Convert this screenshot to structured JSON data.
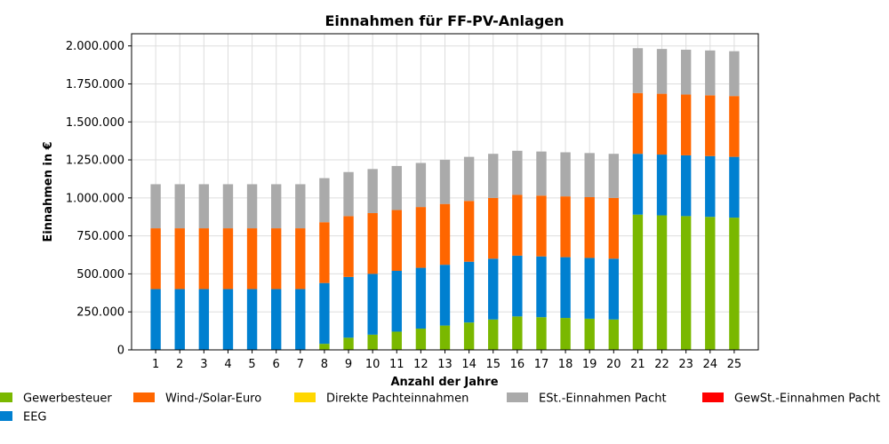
{
  "chart_data": {
    "type": "bar",
    "stacked": true,
    "title": "Einnahmen für FF-PV-Anlagen",
    "xlabel": "Anzahl der Jahre",
    "ylabel": "Einnahmen in €",
    "ylim": [
      0,
      2080000
    ],
    "yticks": [
      0,
      250000,
      500000,
      750000,
      1000000,
      1250000,
      1500000,
      1750000,
      2000000
    ],
    "ytick_labels": [
      "0",
      "250.000",
      "500.000",
      "750.000",
      "1.000.000",
      "1.250.000",
      "1.500.000",
      "1.750.000",
      "2.000.000"
    ],
    "grid": true,
    "legend_position": "bottom",
    "categories": [
      "1",
      "2",
      "3",
      "4",
      "5",
      "6",
      "7",
      "8",
      "9",
      "10",
      "11",
      "12",
      "13",
      "14",
      "15",
      "16",
      "17",
      "18",
      "19",
      "20",
      "21",
      "22",
      "23",
      "24",
      "25"
    ],
    "series": [
      {
        "name": "Gewerbesteuer",
        "color": "#7ab800",
        "values": [
          0,
          0,
          0,
          0,
          0,
          0,
          0,
          40000,
          80000,
          100000,
          120000,
          140000,
          160000,
          180000,
          200000,
          220000,
          215000,
          210000,
          205000,
          200000,
          890000,
          885000,
          880000,
          875000,
          870000
        ]
      },
      {
        "name": "EEG",
        "color": "#0080d0",
        "values": [
          400000,
          400000,
          400000,
          400000,
          400000,
          400000,
          400000,
          400000,
          400000,
          400000,
          400000,
          400000,
          400000,
          400000,
          400000,
          400000,
          400000,
          400000,
          400000,
          400000,
          400000,
          400000,
          400000,
          400000,
          400000
        ]
      },
      {
        "name": "Wind-/Solar-Euro",
        "color": "#ff6600",
        "values": [
          400000,
          400000,
          400000,
          400000,
          400000,
          400000,
          400000,
          400000,
          400000,
          400000,
          400000,
          400000,
          400000,
          400000,
          400000,
          400000,
          400000,
          400000,
          400000,
          400000,
          400000,
          400000,
          400000,
          400000,
          400000
        ]
      },
      {
        "name": "Direkte Pachteinnahmen",
        "color": "#ffd700",
        "values": [
          0,
          0,
          0,
          0,
          0,
          0,
          0,
          0,
          0,
          0,
          0,
          0,
          0,
          0,
          0,
          0,
          0,
          0,
          0,
          0,
          0,
          0,
          0,
          0,
          0
        ]
      },
      {
        "name": "ESt.-Einnahmen Pacht",
        "color": "#aaaaaa",
        "values": [
          290000,
          290000,
          290000,
          290000,
          290000,
          290000,
          290000,
          290000,
          290000,
          290000,
          290000,
          290000,
          290000,
          290000,
          290000,
          290000,
          290000,
          290000,
          290000,
          290000,
          295000,
          295000,
          295000,
          295000,
          295000
        ]
      },
      {
        "name": "GewSt.-Einnahmen Pacht",
        "color": "#ff0000",
        "values": [
          0,
          0,
          0,
          0,
          0,
          0,
          0,
          0,
          0,
          0,
          0,
          0,
          0,
          0,
          0,
          0,
          0,
          0,
          0,
          0,
          0,
          0,
          0,
          0,
          0
        ]
      }
    ]
  }
}
